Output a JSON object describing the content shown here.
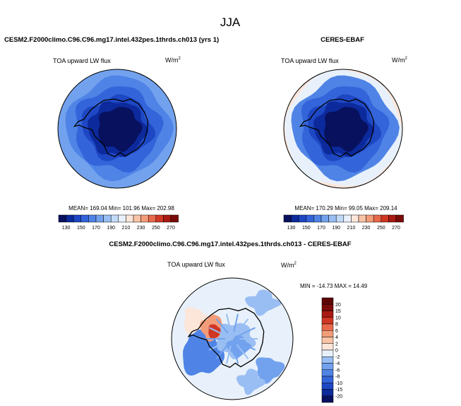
{
  "figure": {
    "title": "JJA"
  },
  "panels": [
    {
      "title": "CESM2.F2000climo.C96.C96.mg17.intel.432pes.1thrds.ch013 (yrs 1)",
      "variable": "TOA upward LW flux",
      "units_base": "W/m",
      "units_exp": "2",
      "stats": "MEAN= 169.04  Min= 101.96  Max= 202.98"
    },
    {
      "title": "CERES-EBAF",
      "variable": "TOA upward LW flux",
      "units_base": "W/m",
      "units_exp": "2",
      "stats": "MEAN= 170.29  Min=  99.05  Max= 209.14"
    },
    {
      "title": "CESM2.F2000climo.C96.C96.mg17.intel.432pes.1thrds.ch013 - CERES-EBAF",
      "variable": "TOA upward LW flux",
      "units_base": "W/m",
      "units_exp": "2",
      "stats": "MIN = -14.73 MAX =  14.49"
    }
  ],
  "chart_data": [
    {
      "type": "heatmap",
      "projection": "polar-stereographic-south",
      "title": "CESM2.F2000climo.C96.C96.mg17.intel.432pes.1thrds.ch013 (yrs 1)",
      "variable": "TOA upward LW flux",
      "units": "W/m2",
      "mean": 169.04,
      "min": 101.96,
      "max": 202.98,
      "colorbar": {
        "levels": [
          130,
          140,
          150,
          160,
          170,
          180,
          190,
          200,
          210,
          220,
          230,
          240,
          250,
          260,
          270
        ],
        "tick_labels": [
          "130",
          "150",
          "170",
          "190",
          "210",
          "230",
          "250",
          "270"
        ],
        "colors": [
          "#08115e",
          "#0c2a9c",
          "#1e47c4",
          "#3464da",
          "#4f84e6",
          "#72a2ee",
          "#99bef3",
          "#c2daf8",
          "#e8f1fb",
          "#fce6da",
          "#f8c3a6",
          "#f39c79",
          "#e9694b",
          "#cf3724",
          "#a81a12",
          "#7a0b09"
        ]
      }
    },
    {
      "type": "heatmap",
      "projection": "polar-stereographic-south",
      "title": "CERES-EBAF",
      "variable": "TOA upward LW flux",
      "units": "W/m2",
      "mean": 170.29,
      "min": 99.05,
      "max": 209.14,
      "colorbar": {
        "levels": [
          130,
          140,
          150,
          160,
          170,
          180,
          190,
          200,
          210,
          220,
          230,
          240,
          250,
          260,
          270
        ],
        "tick_labels": [
          "130",
          "150",
          "170",
          "190",
          "210",
          "230",
          "250",
          "270"
        ],
        "colors": [
          "#08115e",
          "#0c2a9c",
          "#1e47c4",
          "#3464da",
          "#4f84e6",
          "#72a2ee",
          "#99bef3",
          "#c2daf8",
          "#e8f1fb",
          "#fce6da",
          "#f8c3a6",
          "#f39c79",
          "#e9694b",
          "#cf3724",
          "#a81a12",
          "#7a0b09"
        ]
      }
    },
    {
      "type": "heatmap",
      "projection": "polar-stereographic-south",
      "title": "CESM2.F2000climo.C96.C96.mg17.intel.432pes.1thrds.ch013 - CERES-EBAF",
      "variable": "TOA upward LW flux",
      "units": "W/m2",
      "min": -14.73,
      "max": 14.49,
      "colorbar": {
        "levels": [
          -20,
          -15,
          -10,
          -8,
          -6,
          -4,
          -2,
          0,
          2,
          4,
          6,
          8,
          10,
          15,
          20
        ],
        "tick_labels": [
          "20",
          "15",
          "10",
          "8",
          "6",
          "4",
          "2",
          "0",
          "-2",
          "-4",
          "-6",
          "-8",
          "-10",
          "-15",
          "-20"
        ],
        "colors": [
          "#08115e",
          "#0c2a9c",
          "#1e47c4",
          "#3464da",
          "#4f84e6",
          "#72a2ee",
          "#99bef3",
          "#e8f1fb",
          "#fce6da",
          "#f8c3a6",
          "#f39c79",
          "#e9694b",
          "#cf3724",
          "#a81a12",
          "#7a0b09",
          "#5c0606"
        ]
      }
    }
  ]
}
